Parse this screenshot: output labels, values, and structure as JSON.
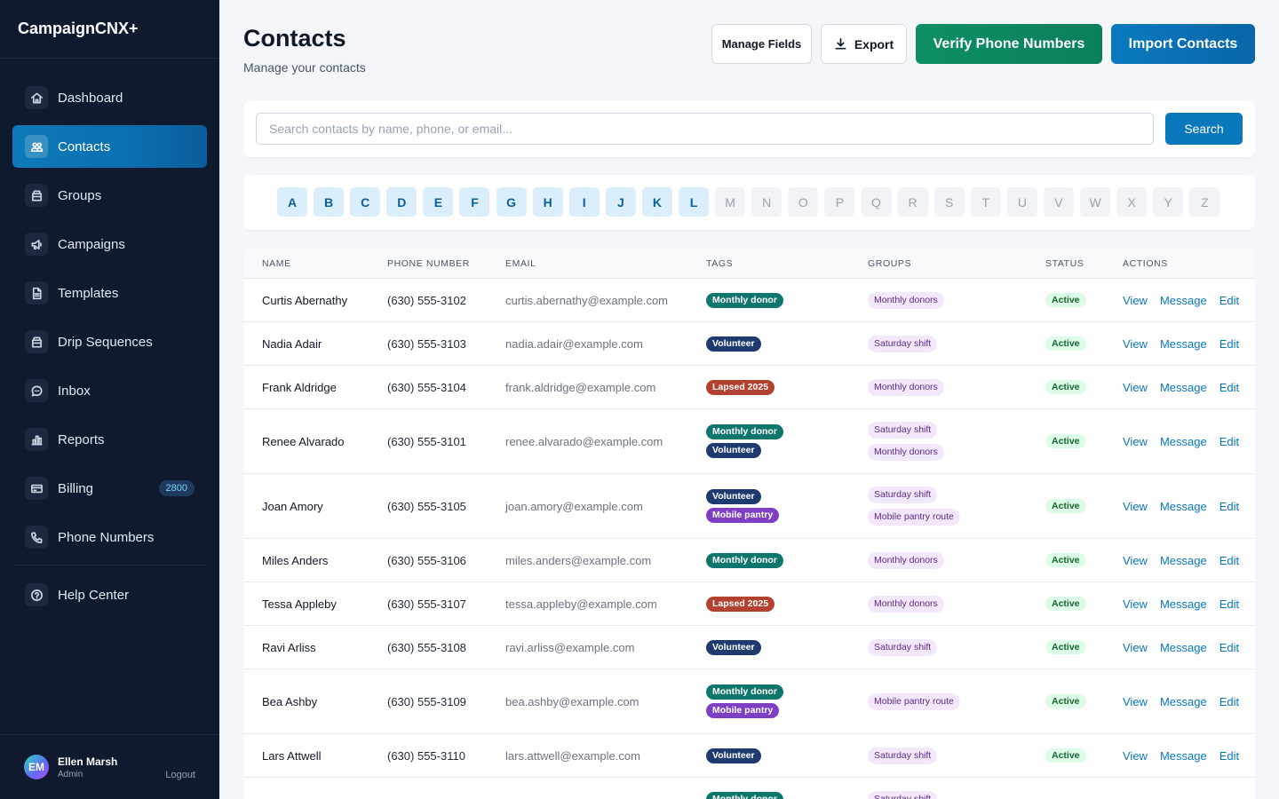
{
  "app": {
    "brand": "CampaignCNX+"
  },
  "sidebar": {
    "items": [
      {
        "label": "Dashboard",
        "icon": "home-icon"
      },
      {
        "label": "Contacts",
        "icon": "users-icon",
        "active": true
      },
      {
        "label": "Groups",
        "icon": "folder-icon"
      },
      {
        "label": "Campaigns",
        "icon": "megaphone-icon"
      },
      {
        "label": "Templates",
        "icon": "document-icon"
      },
      {
        "label": "Drip Sequences",
        "icon": "folder-icon"
      },
      {
        "label": "Inbox",
        "icon": "chat-icon"
      },
      {
        "label": "Reports",
        "icon": "bar-chart-icon"
      },
      {
        "label": "Billing",
        "icon": "credit-card-icon",
        "badge": "2800"
      },
      {
        "label": "Phone Numbers",
        "icon": "phone-icon"
      }
    ],
    "help": {
      "label": "Help Center",
      "icon": "help-icon"
    },
    "user": {
      "initials": "EM",
      "name": "Ellen Marsh",
      "role": "Admin",
      "logout": "Logout"
    }
  },
  "header": {
    "title": "Contacts",
    "subtitle": "Manage your contacts",
    "manage_fields": "Manage Fields",
    "export": "Export",
    "verify": "Verify Phone Numbers",
    "import": "Import Contacts"
  },
  "search": {
    "placeholder": "Search contacts by name, phone, or email...",
    "button": "Search"
  },
  "alphabet": {
    "enabled": [
      "A",
      "B",
      "C",
      "D",
      "E",
      "F",
      "G",
      "H",
      "I",
      "J",
      "K",
      "L"
    ],
    "disabled": [
      "M",
      "N",
      "O",
      "P",
      "Q",
      "R",
      "S",
      "T",
      "U",
      "V",
      "W",
      "X",
      "Y",
      "Z"
    ]
  },
  "table": {
    "headers": [
      "NAME",
      "PHONE NUMBER",
      "EMAIL",
      "TAGS",
      "GROUPS",
      "STATUS",
      "ACTIONS"
    ],
    "actions": [
      "View",
      "Message",
      "Edit"
    ],
    "tag_colors": {
      "Monthly donor": "#0f766e",
      "Volunteer": "#1e3a6e",
      "Lapsed 2025": "#b3412f",
      "Mobile pantry": "#7e3fc4"
    },
    "rows": [
      {
        "name": "Curtis Abernathy",
        "phone": "(630) 555-3102",
        "email": "curtis.abernathy@example.com",
        "tags": [
          "Monthly donor"
        ],
        "groups": [
          "Monthly donors"
        ],
        "status": "Active"
      },
      {
        "name": "Nadia Adair",
        "phone": "(630) 555-3103",
        "email": "nadia.adair@example.com",
        "tags": [
          "Volunteer"
        ],
        "groups": [
          "Saturday shift"
        ],
        "status": "Active"
      },
      {
        "name": "Frank Aldridge",
        "phone": "(630) 555-3104",
        "email": "frank.aldridge@example.com",
        "tags": [
          "Lapsed 2025"
        ],
        "groups": [
          "Monthly donors"
        ],
        "status": "Active"
      },
      {
        "name": "Renee Alvarado",
        "phone": "(630) 555-3101",
        "email": "renee.alvarado@example.com",
        "tags": [
          "Monthly donor",
          "Volunteer"
        ],
        "groups": [
          "Saturday shift",
          "Monthly donors"
        ],
        "status": "Active"
      },
      {
        "name": "Joan Amory",
        "phone": "(630) 555-3105",
        "email": "joan.amory@example.com",
        "tags": [
          "Volunteer",
          "Mobile pantry"
        ],
        "groups": [
          "Saturday shift",
          "Mobile pantry route"
        ],
        "status": "Active"
      },
      {
        "name": "Miles Anders",
        "phone": "(630) 555-3106",
        "email": "miles.anders@example.com",
        "tags": [
          "Monthly donor"
        ],
        "groups": [
          "Monthly donors"
        ],
        "status": "Active"
      },
      {
        "name": "Tessa Appleby",
        "phone": "(630) 555-3107",
        "email": "tessa.appleby@example.com",
        "tags": [
          "Lapsed 2025"
        ],
        "groups": [
          "Monthly donors"
        ],
        "status": "Active"
      },
      {
        "name": "Ravi Arliss",
        "phone": "(630) 555-3108",
        "email": "ravi.arliss@example.com",
        "tags": [
          "Volunteer"
        ],
        "groups": [
          "Saturday shift"
        ],
        "status": "Active"
      },
      {
        "name": "Bea Ashby",
        "phone": "(630) 555-3109",
        "email": "bea.ashby@example.com",
        "tags": [
          "Monthly donor",
          "Mobile pantry"
        ],
        "groups": [
          "Mobile pantry route"
        ],
        "status": "Active"
      },
      {
        "name": "Lars Attwell",
        "phone": "(630) 555-3110",
        "email": "lars.attwell@example.com",
        "tags": [
          "Volunteer"
        ],
        "groups": [
          "Saturday shift"
        ],
        "status": "Active"
      },
      {
        "name": "",
        "phone": "",
        "email": "",
        "tags": [
          "Monthly donor"
        ],
        "groups": [
          "Saturday shift"
        ],
        "status": ""
      }
    ]
  }
}
